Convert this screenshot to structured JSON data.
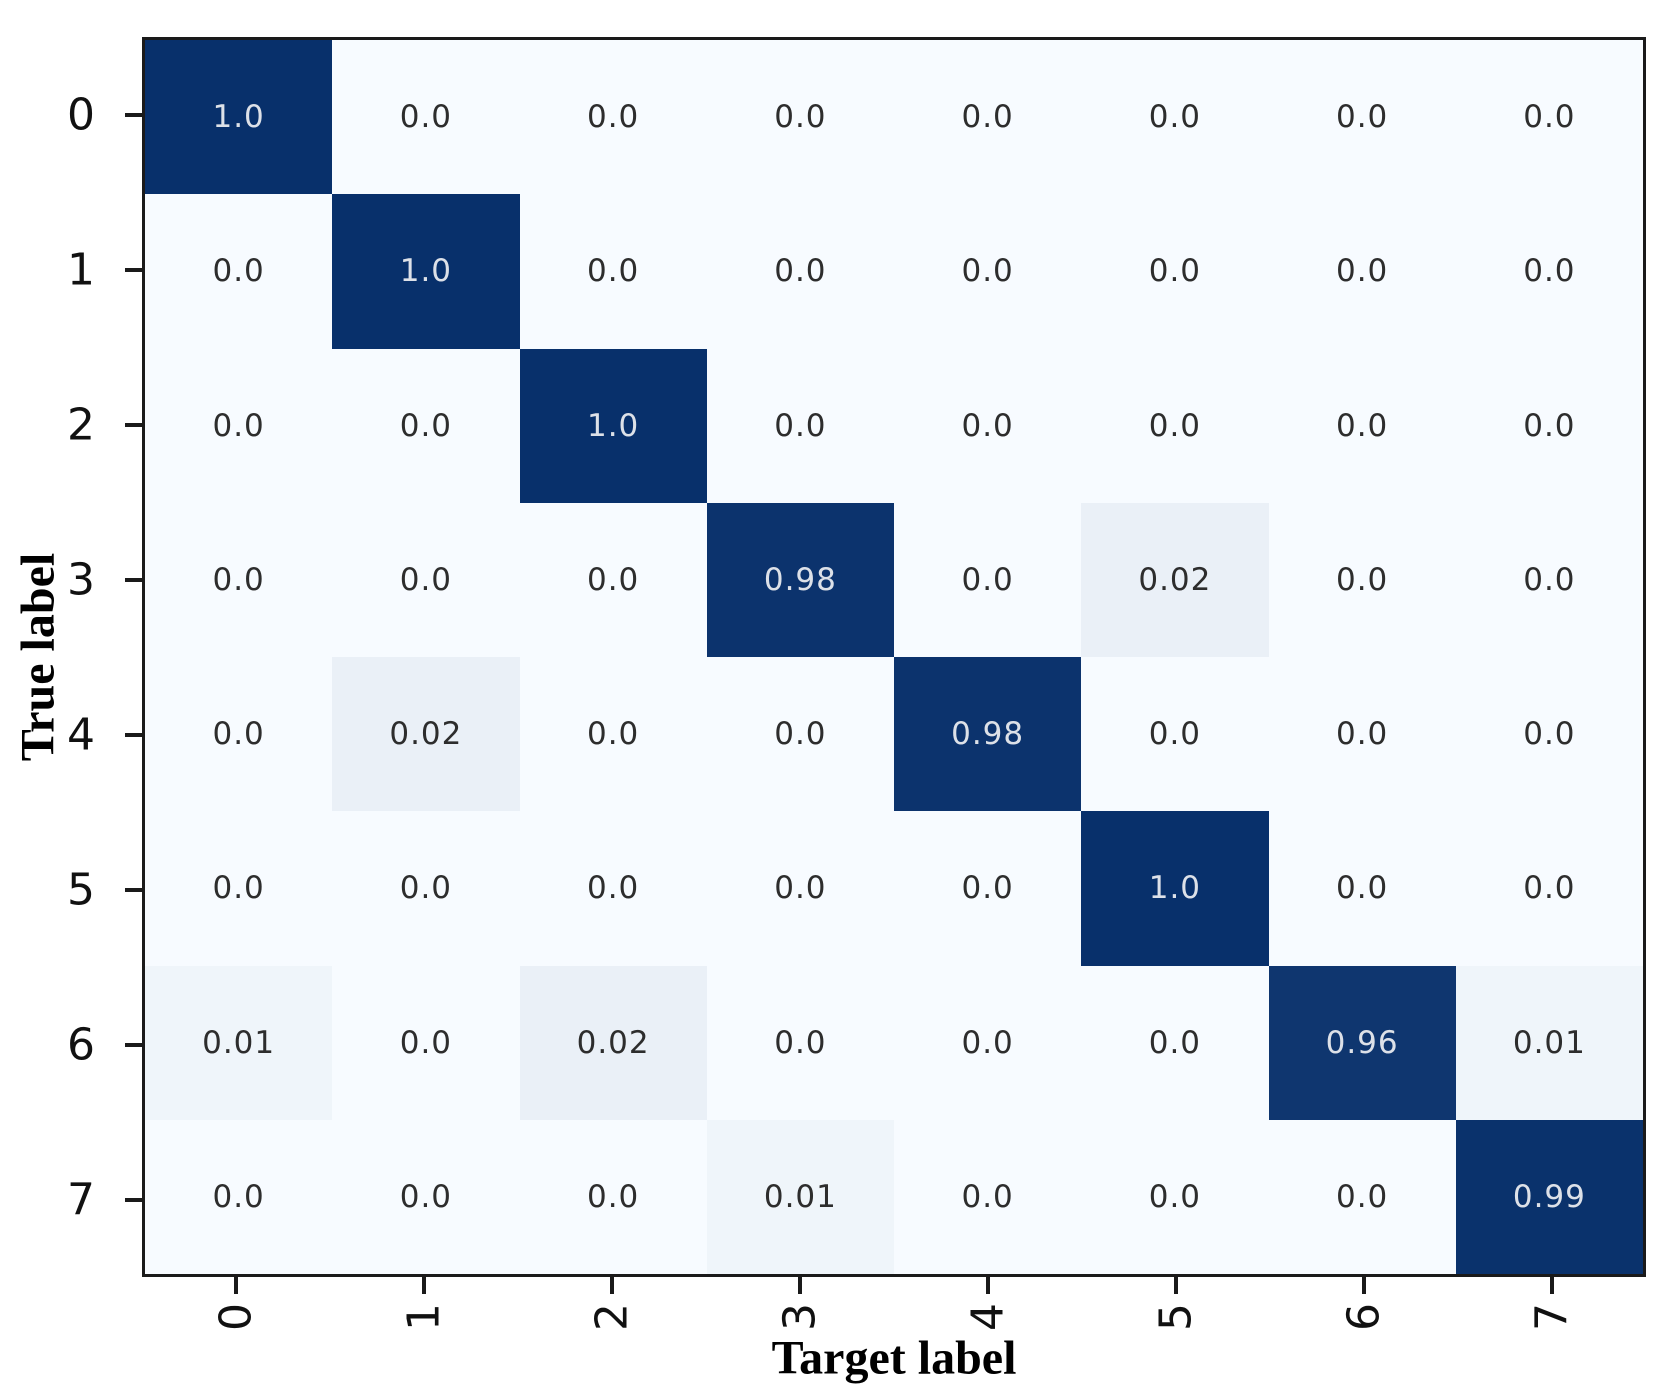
{
  "chart_data": {
    "type": "heatmap",
    "title": "",
    "xlabel": "Target label",
    "ylabel": "True label",
    "x_ticks": [
      "0",
      "1",
      "2",
      "3",
      "4",
      "5",
      "6",
      "7"
    ],
    "y_ticks": [
      "0",
      "1",
      "2",
      "3",
      "4",
      "5",
      "6",
      "7"
    ],
    "matrix": [
      [
        "1.0",
        "0.0",
        "0.0",
        "0.0",
        "0.0",
        "0.0",
        "0.0",
        "0.0"
      ],
      [
        "0.0",
        "1.0",
        "0.0",
        "0.0",
        "0.0",
        "0.0",
        "0.0",
        "0.0"
      ],
      [
        "0.0",
        "0.0",
        "1.0",
        "0.0",
        "0.0",
        "0.0",
        "0.0",
        "0.0"
      ],
      [
        "0.0",
        "0.0",
        "0.0",
        "0.98",
        "0.0",
        "0.02",
        "0.0",
        "0.0"
      ],
      [
        "0.0",
        "0.02",
        "0.0",
        "0.0",
        "0.98",
        "0.0",
        "0.0",
        "0.0"
      ],
      [
        "0.0",
        "0.0",
        "0.0",
        "0.0",
        "0.0",
        "1.0",
        "0.0",
        "0.0"
      ],
      [
        "0.01",
        "0.0",
        "0.02",
        "0.0",
        "0.0",
        "0.0",
        "0.96",
        "0.01"
      ],
      [
        "0.0",
        "0.0",
        "0.0",
        "0.01",
        "0.0",
        "0.0",
        "0.0",
        "0.99"
      ]
    ],
    "value_range": [
      0,
      1
    ],
    "grid": false,
    "legend": "none",
    "colormap": {
      "name": "Blues",
      "low": "#f7fbff",
      "high": "#08306b"
    },
    "colors": {
      "spine": "#1a1a1a",
      "tick": "#1a1a1a",
      "tick_label": "#111111",
      "cell_text_on_light": "#2d2d2d",
      "cell_text_on_dark": "#dde1e8"
    }
  }
}
